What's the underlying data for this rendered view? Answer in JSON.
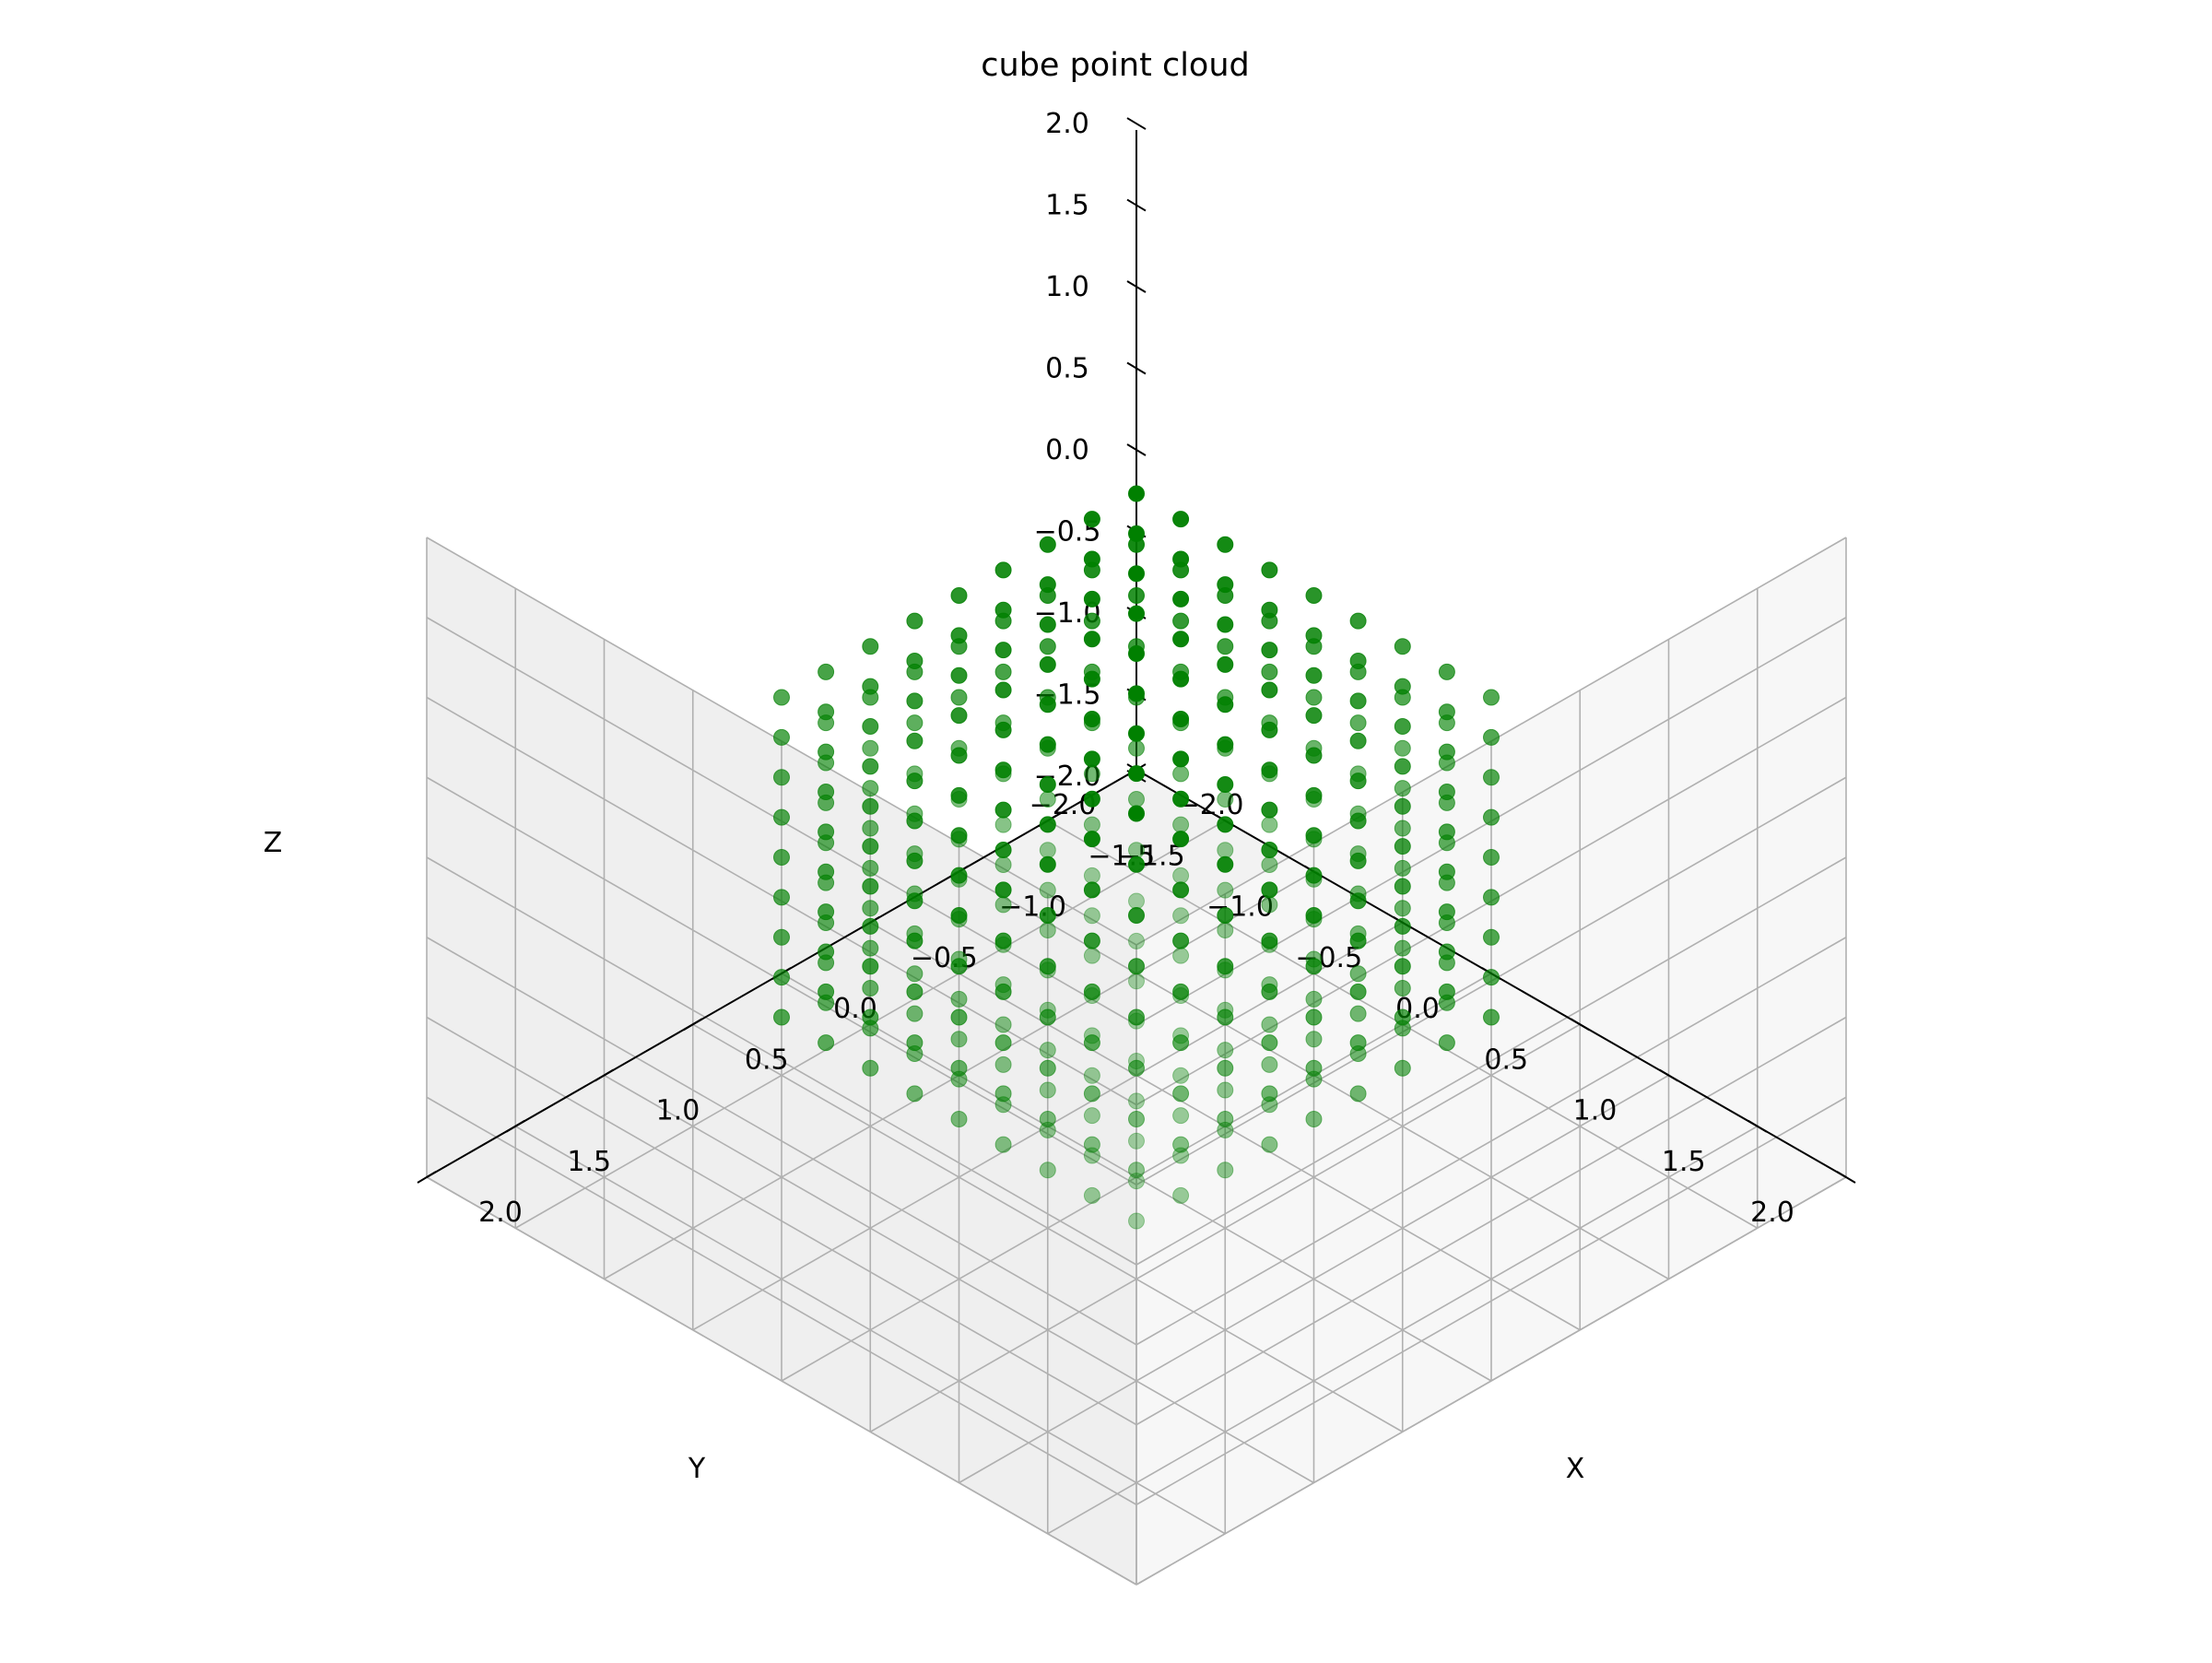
{
  "chart_data": {
    "type": "scatter",
    "projection": "3d",
    "title": "cube point cloud",
    "xlabel": "X",
    "ylabel": "Y",
    "zlabel": "Z",
    "xlim": [
      -2.0,
      2.0
    ],
    "ylim": [
      -2.0,
      2.0
    ],
    "zlim": [
      -2.0,
      2.0
    ],
    "x_ticks": [
      "−2.0",
      "−1.5",
      "−1.0",
      "−0.5",
      "0.0",
      "0.5",
      "1.0",
      "1.5",
      "2.0"
    ],
    "y_ticks": [
      "−2.0",
      "−1.5",
      "−1.0",
      "−0.5",
      "0.0",
      "0.5",
      "1.0",
      "1.5",
      "2.0"
    ],
    "z_ticks": [
      "−2.0",
      "−1.5",
      "−1.0",
      "−0.5",
      "0.0",
      "0.5",
      "1.0",
      "1.5",
      "2.0"
    ],
    "grid": true,
    "view": {
      "elevation_deg": 30,
      "azimuth_deg": 45
    },
    "marker_color": "#008000",
    "points": {
      "description_of_set": "surface points of cube from -1 to 1, spacing 0.25",
      "grid_values": [
        -1.0,
        -0.75,
        -0.5,
        -0.25,
        0.0,
        0.25,
        0.5,
        0.75,
        1.0
      ]
    }
  }
}
